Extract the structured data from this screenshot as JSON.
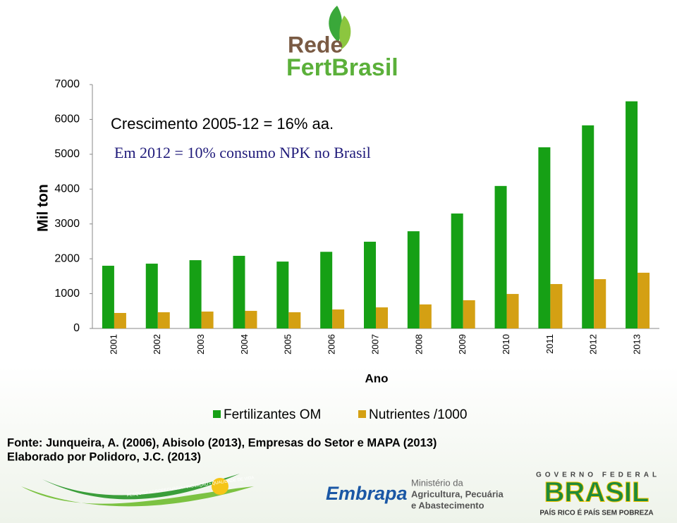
{
  "logo": {
    "line1": "Rede",
    "line2": "FertBrasil"
  },
  "chart_data": {
    "type": "bar",
    "annotations": [
      "Crescimento 2005-12 = 16% aa.",
      "Em 2012 = 10% consumo NPK no Brasil"
    ],
    "y_label": "Mil ton",
    "x_label": "Ano",
    "categories": [
      "2001",
      "2002",
      "2003",
      "2004",
      "2005",
      "2006",
      "2007",
      "2008",
      "2009",
      "2010",
      "2011",
      "2012",
      "2013"
    ],
    "series": [
      {
        "name": "Fertilizantes OM",
        "color": "#16a015",
        "values": [
          1800,
          1860,
          1960,
          2085,
          1920,
          2200,
          2490,
          2790,
          3300,
          4090,
          5200,
          5830,
          6520
        ]
      },
      {
        "name": "Nutrientes /1000",
        "color": "#d4a013",
        "values": [
          445,
          465,
          485,
          505,
          465,
          545,
          605,
          690,
          810,
          990,
          1275,
          1415,
          1600
        ]
      }
    ],
    "ylim": [
      0,
      7000
    ],
    "yticks": [
      0,
      1000,
      2000,
      3000,
      4000,
      5000,
      6000,
      7000
    ],
    "grid": false,
    "legend": "bottom"
  },
  "source": [
    "Fonte: Junqueira, A. (2006), Abisolo (2013), Empresas do Setor e MAPA (2013)",
    "Elaborado por Polidoro, J.C. (2013)"
  ],
  "footer": {
    "tagline": "PESQUISA AGROPECUÁRIA • INOVAÇÃO • QUALIDADE DE VIDA",
    "embrapa": "Embrapa",
    "ministry": [
      "Ministério da",
      "Agricultura, Pecuária",
      "e Abastecimento"
    ],
    "gov": "GOVERNO FEDERAL",
    "brasil": "BRASIL",
    "motto": "PAÍS RICO É PAÍS SEM POBREZA"
  }
}
